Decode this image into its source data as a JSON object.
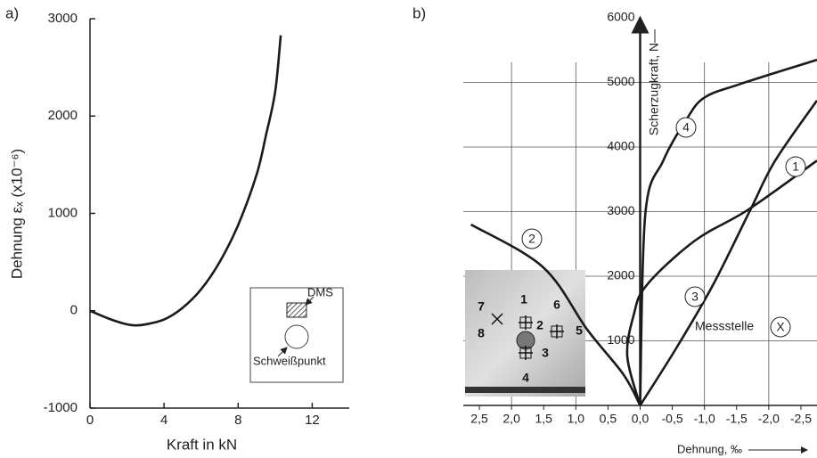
{
  "chart_data": [
    {
      "type": "line",
      "panel": "a)",
      "x_label": "Kraft in kN",
      "y_label": "Dehnung  εₓ (x10⁻⁶)",
      "x": [
        0,
        1,
        2,
        2.5,
        3,
        4,
        5,
        6,
        7,
        8,
        9,
        9.5,
        10,
        10.3
      ],
      "values": [
        0,
        -80,
        -140,
        -150,
        -140,
        -90,
        30,
        220,
        500,
        880,
        1400,
        1800,
        2250,
        2830
      ],
      "color": "#1a1a1a",
      "xlim": [
        0,
        14
      ],
      "xticks": [
        0,
        4,
        8,
        12
      ],
      "ylim": [
        -1000,
        3000
      ],
      "yticks": [
        -1000,
        0,
        1000,
        2000,
        3000
      ],
      "inset_labels": [
        "DMS",
        "Schweißpunkt"
      ]
    },
    {
      "type": "line",
      "panel": "b)",
      "x_label": "Dehnung, ‰",
      "y_label": "Scherzugkraft, N",
      "xlim": [
        2.75,
        -2.75
      ],
      "xticks": [
        {
          "value": 2.5,
          "label": "2,5"
        },
        {
          "value": 2,
          "label": "2,0"
        },
        {
          "value": 1.5,
          "label": "1,5"
        },
        {
          "value": 1,
          "label": "1,0"
        },
        {
          "value": 0.5,
          "label": "0,5"
        },
        {
          "value": 0,
          "label": "0,0"
        },
        {
          "value": -0.5,
          "label": "-0,5"
        },
        {
          "value": -1,
          "label": "-1,0"
        },
        {
          "value": -1.5,
          "label": "-1,5"
        },
        {
          "value": -2,
          "label": "-2,0"
        },
        {
          "value": -2.5,
          "label": "-2,5"
        }
      ],
      "ylim": [
        0,
        6000
      ],
      "yticks": [
        1000,
        2000,
        3000,
        4000,
        5000,
        6000
      ],
      "grid": true,
      "x_grid": [
        2,
        1,
        -1,
        -2
      ],
      "annotation": "Messstelle",
      "marker": "X",
      "photo_labels": [
        "1",
        "2",
        "3",
        "4",
        "5",
        "6",
        "7",
        "8"
      ],
      "series": [
        {
          "name": "1",
          "color": "#1a1a1a",
          "x": [
            0,
            0.2,
            0.1,
            -0.1,
            -0.85,
            -1.68,
            -2.75
          ],
          "values": [
            0,
            760,
            1400,
            1860,
            2550,
            3030,
            3790
          ]
        },
        {
          "name": "2",
          "color": "#1a1a1a",
          "x": [
            2.63,
            1.51,
            0.82,
            0.26,
            0
          ],
          "values": [
            2800,
            2140,
            1170,
            480,
            0
          ]
        },
        {
          "name": "3",
          "color": "#1a1a1a",
          "x": [
            0,
            -0.57,
            -1.13,
            -1.71,
            -2.1,
            -2.75
          ],
          "values": [
            0,
            900,
            1860,
            3020,
            3790,
            4720
          ]
        },
        {
          "name": "4",
          "color": "#1a1a1a",
          "x": [
            0,
            -0.08,
            -0.36,
            -0.71,
            -0.99,
            -1.54,
            -2.75
          ],
          "values": [
            0,
            2960,
            3790,
            4410,
            4760,
            4970,
            5350
          ]
        }
      ]
    }
  ]
}
